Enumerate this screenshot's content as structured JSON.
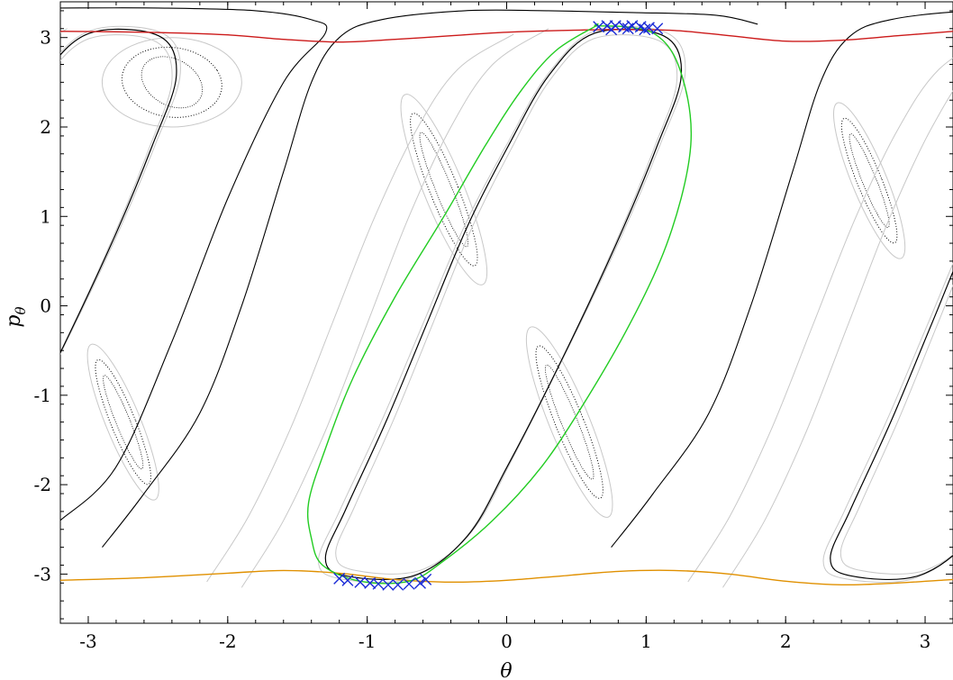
{
  "chart_data": {
    "type": "scatter",
    "title": "",
    "xlabel": "θ",
    "ylabel": "p_θ",
    "xlim": [
      -3.2,
      3.2
    ],
    "ylim": [
      -3.55,
      3.4
    ],
    "grid": false,
    "xticks": [
      -3,
      -2,
      -1,
      0,
      1,
      2,
      3
    ],
    "yticks": [
      3,
      2,
      1,
      0,
      -1,
      -2,
      -3
    ],
    "colors": {
      "red_curve": "#cc1a1a",
      "orange_curve": "#e09000",
      "green_curve": "#22cc22",
      "gray_curves": "#c8c8c8",
      "black_curves": "#000000",
      "blue_markers": "#1a2bd6"
    },
    "series": [
      {
        "style": "curve",
        "color": "#cc1a1a",
        "x": [
          -3.2,
          -2.6,
          -2.0,
          -1.6,
          -1.2,
          -0.8,
          -0.4,
          0.0,
          0.4,
          0.8,
          1.2,
          1.6,
          2.0,
          2.4,
          2.8,
          3.2
        ],
        "y": [
          3.07,
          3.06,
          3.03,
          2.98,
          2.95,
          2.98,
          3.02,
          3.06,
          3.08,
          3.09,
          3.08,
          3.02,
          2.96,
          2.97,
          3.02,
          3.07
        ]
      },
      {
        "style": "curve",
        "color": "#e09000",
        "x": [
          -3.2,
          -2.6,
          -2.0,
          -1.6,
          -1.2,
          -0.8,
          -0.4,
          0.0,
          0.4,
          0.8,
          1.2,
          1.6,
          2.0,
          2.4,
          2.8,
          3.2
        ],
        "y": [
          -3.07,
          -3.04,
          -2.99,
          -2.96,
          -2.99,
          -3.06,
          -3.09,
          -3.07,
          -3.02,
          -2.97,
          -2.96,
          -3.0,
          -3.08,
          -3.12,
          -3.1,
          -3.06
        ]
      },
      {
        "style": "closed-curve",
        "color": "#22cc22",
        "x": [
          0.64,
          0.85,
          1.05,
          1.2,
          1.3,
          1.32,
          1.25,
          1.1,
          0.85,
          0.55,
          0.25,
          -0.1,
          -0.45,
          -0.7,
          -1.05,
          -1.32,
          -1.4,
          -1.42,
          -1.3,
          -1.1,
          -0.8,
          -0.45,
          -0.15,
          0.1,
          0.35,
          0.64
        ],
        "y": [
          3.13,
          3.12,
          3.05,
          2.8,
          2.3,
          1.8,
          1.2,
          0.5,
          -0.3,
          -1.1,
          -1.8,
          -2.4,
          -2.85,
          -3.08,
          -3.08,
          -2.9,
          -2.6,
          -2.2,
          -1.6,
          -0.8,
          0.1,
          1.0,
          1.8,
          2.4,
          2.85,
          3.13
        ]
      },
      {
        "style": "markers",
        "marker": "x",
        "color": "#1a2bd6",
        "x": [
          0.66,
          0.72,
          0.78,
          0.84,
          0.9,
          0.96,
          1.02,
          1.08,
          0.75,
          0.87,
          0.99,
          -1.2,
          -1.14,
          -1.05,
          -0.98,
          -0.92,
          -0.85,
          -0.78,
          -0.7,
          -0.62,
          -0.58
        ],
        "y": [
          3.12,
          3.13,
          3.13,
          3.12,
          3.13,
          3.12,
          3.11,
          3.1,
          3.09,
          3.1,
          3.09,
          -3.05,
          -3.07,
          -3.09,
          -3.1,
          -3.11,
          -3.12,
          -3.12,
          -3.11,
          -3.1,
          -3.06
        ]
      }
    ]
  }
}
